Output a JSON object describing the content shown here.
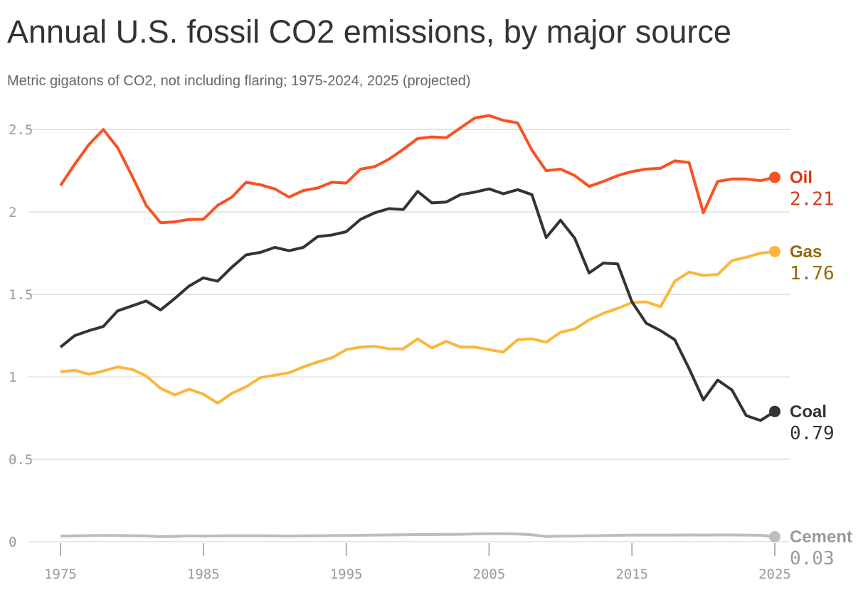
{
  "chart_data": {
    "type": "line",
    "title": "Annual U.S. fossil CO2 emissions, by major source",
    "subtitle": "Metric gigatons of CO2, not including flaring; 1975-2024, 2025 (projected)",
    "x": [
      1975,
      1976,
      1977,
      1978,
      1979,
      1980,
      1981,
      1982,
      1983,
      1984,
      1985,
      1986,
      1987,
      1988,
      1989,
      1990,
      1991,
      1992,
      1993,
      1994,
      1995,
      1996,
      1997,
      1998,
      1999,
      2000,
      2001,
      2002,
      2003,
      2004,
      2005,
      2006,
      2007,
      2008,
      2009,
      2010,
      2011,
      2012,
      2013,
      2014,
      2015,
      2016,
      2017,
      2018,
      2019,
      2020,
      2021,
      2022,
      2023,
      2024,
      2025
    ],
    "xlim": [
      1975,
      2025
    ],
    "xticks": [
      1975,
      1985,
      1995,
      2005,
      2015,
      2025
    ],
    "ylim": [
      0,
      2.6
    ],
    "yticks": [
      0,
      0.5,
      1,
      1.5,
      2,
      2.5
    ],
    "grid": true,
    "series": [
      {
        "name": "Oil",
        "color": "#fa5123",
        "label_color": "#d53a10",
        "values": [
          2.16,
          2.29,
          2.41,
          2.5,
          2.39,
          2.22,
          2.04,
          1.935,
          1.94,
          1.955,
          1.955,
          2.04,
          2.09,
          2.18,
          2.165,
          2.14,
          2.09,
          2.13,
          2.145,
          2.18,
          2.175,
          2.26,
          2.275,
          2.32,
          2.38,
          2.445,
          2.455,
          2.45,
          2.51,
          2.57,
          2.585,
          2.555,
          2.54,
          2.375,
          2.25,
          2.26,
          2.22,
          2.155,
          2.185,
          2.22,
          2.245,
          2.26,
          2.265,
          2.31,
          2.3,
          1.995,
          2.185,
          2.2,
          2.2,
          2.19,
          2.21
        ]
      },
      {
        "name": "Gas",
        "color": "#fbb63c",
        "label_color": "#94680a",
        "values": [
          1.03,
          1.04,
          1.015,
          1.035,
          1.06,
          1.045,
          1.005,
          0.93,
          0.89,
          0.925,
          0.895,
          0.84,
          0.9,
          0.94,
          0.995,
          1.01,
          1.025,
          1.06,
          1.09,
          1.115,
          1.165,
          1.18,
          1.185,
          1.17,
          1.17,
          1.23,
          1.175,
          1.215,
          1.18,
          1.18,
          1.165,
          1.15,
          1.225,
          1.23,
          1.21,
          1.27,
          1.29,
          1.345,
          1.385,
          1.415,
          1.45,
          1.455,
          1.425,
          1.58,
          1.635,
          1.615,
          1.62,
          1.705,
          1.725,
          1.75,
          1.76
        ]
      },
      {
        "name": "Coal",
        "color": "#333333",
        "label_color": "#333333",
        "values": [
          1.18,
          1.25,
          1.28,
          1.305,
          1.4,
          1.43,
          1.46,
          1.405,
          1.475,
          1.55,
          1.6,
          1.58,
          1.665,
          1.74,
          1.755,
          1.785,
          1.765,
          1.785,
          1.85,
          1.86,
          1.88,
          1.955,
          1.995,
          2.02,
          2.015,
          2.125,
          2.055,
          2.06,
          2.105,
          2.12,
          2.14,
          2.11,
          2.135,
          2.105,
          1.845,
          1.95,
          1.84,
          1.63,
          1.69,
          1.685,
          1.455,
          1.325,
          1.28,
          1.225,
          1.05,
          0.86,
          0.98,
          0.92,
          0.765,
          0.735,
          0.79
        ]
      },
      {
        "name": "Cement",
        "color": "#bdbdbd",
        "label_color": "#9a9a9a",
        "values": [
          0.033,
          0.035,
          0.037,
          0.038,
          0.038,
          0.036,
          0.035,
          0.03,
          0.032,
          0.035,
          0.034,
          0.035,
          0.036,
          0.036,
          0.036,
          0.035,
          0.034,
          0.035,
          0.036,
          0.037,
          0.038,
          0.039,
          0.04,
          0.041,
          0.042,
          0.043,
          0.043,
          0.044,
          0.045,
          0.047,
          0.048,
          0.048,
          0.046,
          0.042,
          0.031,
          0.033,
          0.034,
          0.036,
          0.037,
          0.039,
          0.04,
          0.04,
          0.04,
          0.04,
          0.041,
          0.04,
          0.041,
          0.041,
          0.04,
          0.039,
          0.03
        ]
      }
    ]
  }
}
